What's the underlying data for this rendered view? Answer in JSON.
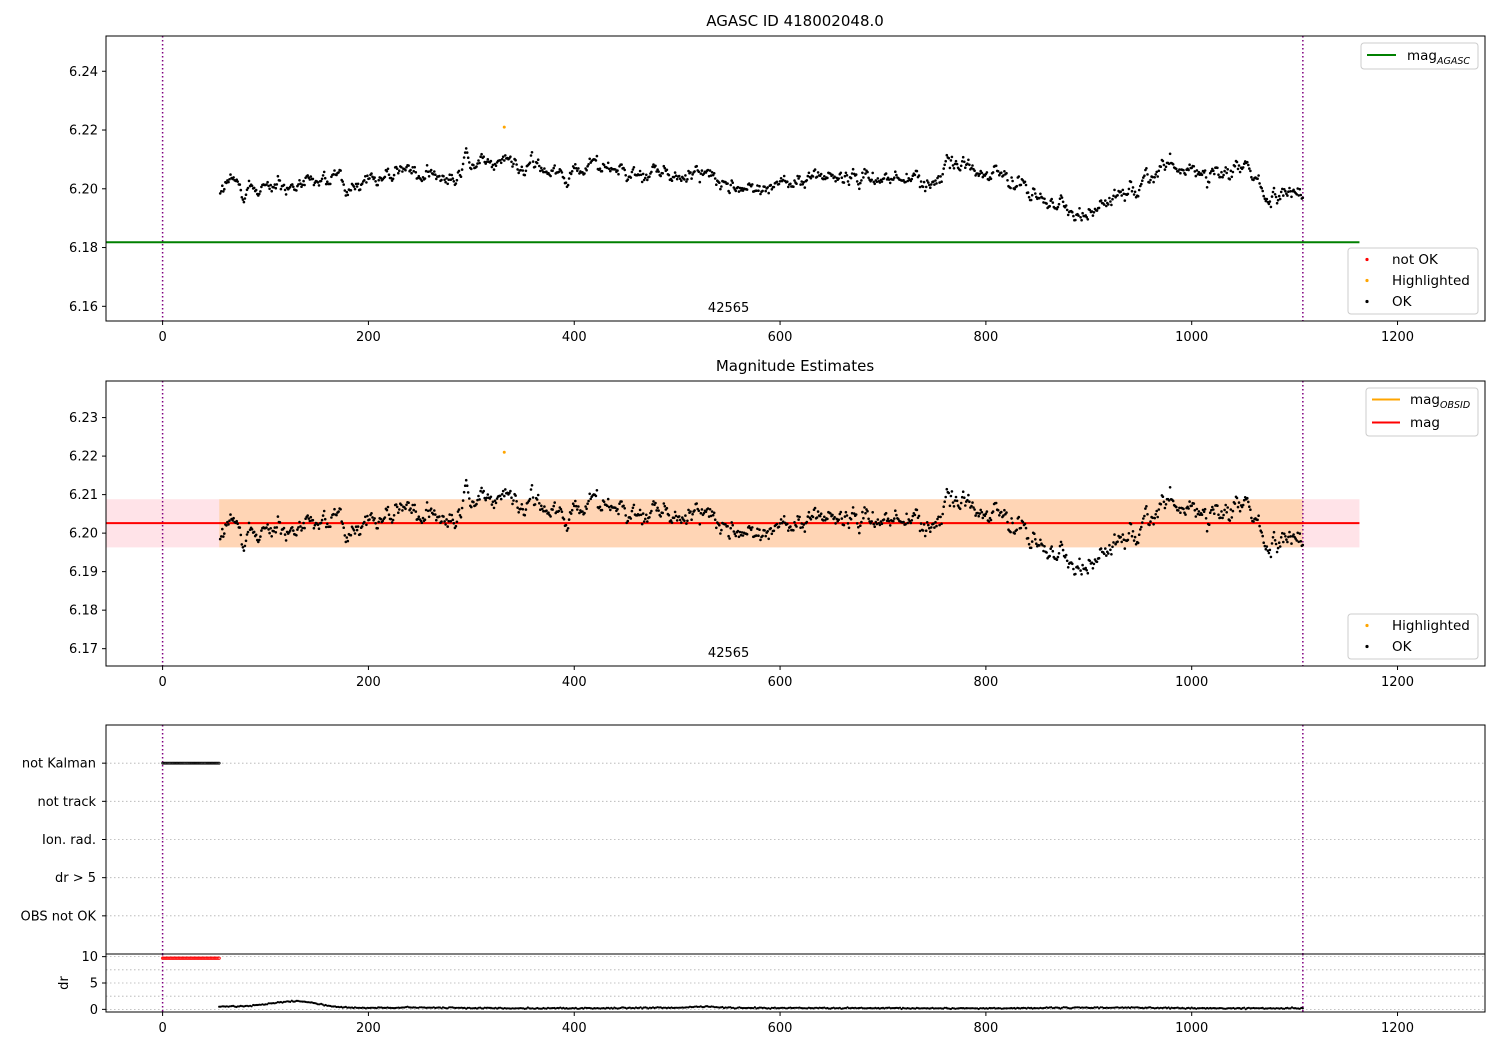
{
  "chart_data": [
    {
      "type": "scatter",
      "title": "AGASC ID 418002048.0",
      "xlim": [
        -55,
        1285
      ],
      "ylim": [
        6.155,
        6.252
      ],
      "x_ticks": [
        0,
        200,
        400,
        600,
        800,
        1000,
        1200
      ],
      "y_ticks": [
        6.16,
        6.18,
        6.2,
        6.22,
        6.24
      ],
      "vlines": [
        0,
        1108
      ],
      "hline": {
        "name": "magAGASC",
        "label_main": "mag",
        "label_sub": "AGASC",
        "y": 6.1818,
        "x_range": [
          -55,
          1163
        ],
        "color": "#008000"
      },
      "annotation": {
        "text": "42565",
        "x": 550
      },
      "data_x_range": [
        55,
        1108
      ],
      "legend_lines": [
        {
          "name": "magAGASC",
          "label_main": "mag",
          "label_sub": "AGASC",
          "color": "#008000"
        }
      ],
      "legend_markers": [
        {
          "name": "not OK",
          "color": "#ff0000"
        },
        {
          "name": "Highlighted",
          "color": "#ffa500"
        },
        {
          "name": "OK",
          "color": "#000000"
        }
      ],
      "highlighted_points": [
        {
          "x": 332,
          "y": 6.221
        }
      ]
    },
    {
      "type": "scatter",
      "title": "Magnitude Estimates",
      "xlim": [
        -55,
        1285
      ],
      "ylim": [
        6.1655,
        6.2395
      ],
      "x_ticks": [
        0,
        200,
        400,
        600,
        800,
        1000,
        1200
      ],
      "y_ticks": [
        6.17,
        6.18,
        6.19,
        6.2,
        6.21,
        6.22,
        6.23
      ],
      "vlines": [
        0,
        1108
      ],
      "mag_line": {
        "name": "mag",
        "y": 6.2026,
        "color": "#ff0000"
      },
      "mag_obsid_band": {
        "low": 6.1963,
        "high": 6.2088,
        "x_range": [
          55,
          1108
        ],
        "color": "#ffa500"
      },
      "mag_band": {
        "low": 6.1963,
        "high": 6.2088,
        "x_range": [
          -55,
          1163
        ],
        "color": "#ffc0cb"
      },
      "annotation": {
        "text": "42565",
        "x": 550
      },
      "data_x_range": [
        55,
        1108
      ],
      "legend_lines": [
        {
          "name": "magOBSID",
          "label_main": "mag",
          "label_sub": "OBSID",
          "color": "#ffa500"
        },
        {
          "name": "mag",
          "label_main": "mag",
          "label_sub": "",
          "color": "#ff0000"
        }
      ],
      "legend_markers": [
        {
          "name": "Highlighted",
          "color": "#ffa500"
        },
        {
          "name": "OK",
          "color": "#000000"
        }
      ],
      "highlighted_points": [
        {
          "x": 332,
          "y": 6.221
        }
      ]
    },
    {
      "type": "scatter",
      "xlim": [
        -55,
        1285
      ],
      "categories": [
        "not Kalman",
        "not track",
        "Ion. rad.",
        "dr > 5",
        "OBS not OK"
      ],
      "vlines": [
        0,
        1108
      ],
      "flag_points": [
        {
          "category": "not Kalman",
          "x_range": [
            0,
            55
          ]
        }
      ]
    },
    {
      "type": "line",
      "ylabel": "dr",
      "xlim": [
        -55,
        1285
      ],
      "ylim": [
        -0.5,
        10.5
      ],
      "x_ticks": [
        0,
        200,
        400,
        600,
        800,
        1000,
        1200
      ],
      "y_ticks": [
        0,
        5,
        10
      ],
      "vlines": [
        0,
        1108
      ],
      "dr_flagged": {
        "x_range": [
          0,
          55
        ],
        "y": 9.7,
        "color": "#ff0000"
      },
      "dr_profile": [
        [
          55,
          0.5
        ],
        [
          80,
          0.6
        ],
        [
          100,
          1.0
        ],
        [
          115,
          1.4
        ],
        [
          130,
          1.6
        ],
        [
          145,
          1.3
        ],
        [
          160,
          0.7
        ],
        [
          180,
          0.3
        ],
        [
          200,
          0.25
        ],
        [
          240,
          0.35
        ],
        [
          300,
          0.25
        ],
        [
          400,
          0.2
        ],
        [
          500,
          0.3
        ],
        [
          530,
          0.6
        ],
        [
          545,
          0.3
        ],
        [
          700,
          0.2
        ],
        [
          800,
          0.2
        ],
        [
          940,
          0.35
        ],
        [
          1000,
          0.2
        ],
        [
          1108,
          0.2
        ]
      ]
    }
  ]
}
